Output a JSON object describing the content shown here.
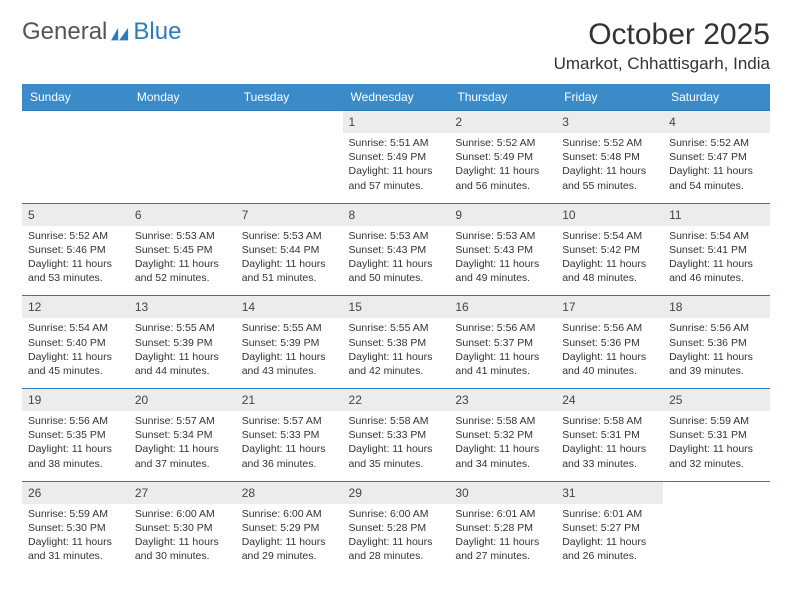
{
  "brand": {
    "part1": "General",
    "part2": "Blue"
  },
  "title": "October 2025",
  "location": "Umarkot, Chhattisgarh, India",
  "colors": {
    "header_bg": "#3b8bc9",
    "header_text": "#ffffff",
    "daynum_bg": "#ececec",
    "border": "#2b7bbd",
    "logo_gray": "#555555",
    "logo_blue": "#2b7bbd",
    "text": "#333333",
    "page_bg": "#ffffff"
  },
  "weekdays": [
    "Sunday",
    "Monday",
    "Tuesday",
    "Wednesday",
    "Thursday",
    "Friday",
    "Saturday"
  ],
  "weeks": [
    {
      "nums": [
        "",
        "",
        "",
        "1",
        "2",
        "3",
        "4"
      ],
      "cells": [
        null,
        null,
        null,
        {
          "sunrise": "Sunrise: 5:51 AM",
          "sunset": "Sunset: 5:49 PM",
          "day1": "Daylight: 11 hours",
          "day2": "and 57 minutes."
        },
        {
          "sunrise": "Sunrise: 5:52 AM",
          "sunset": "Sunset: 5:49 PM",
          "day1": "Daylight: 11 hours",
          "day2": "and 56 minutes."
        },
        {
          "sunrise": "Sunrise: 5:52 AM",
          "sunset": "Sunset: 5:48 PM",
          "day1": "Daylight: 11 hours",
          "day2": "and 55 minutes."
        },
        {
          "sunrise": "Sunrise: 5:52 AM",
          "sunset": "Sunset: 5:47 PM",
          "day1": "Daylight: 11 hours",
          "day2": "and 54 minutes."
        }
      ]
    },
    {
      "nums": [
        "5",
        "6",
        "7",
        "8",
        "9",
        "10",
        "11"
      ],
      "cells": [
        {
          "sunrise": "Sunrise: 5:52 AM",
          "sunset": "Sunset: 5:46 PM",
          "day1": "Daylight: 11 hours",
          "day2": "and 53 minutes."
        },
        {
          "sunrise": "Sunrise: 5:53 AM",
          "sunset": "Sunset: 5:45 PM",
          "day1": "Daylight: 11 hours",
          "day2": "and 52 minutes."
        },
        {
          "sunrise": "Sunrise: 5:53 AM",
          "sunset": "Sunset: 5:44 PM",
          "day1": "Daylight: 11 hours",
          "day2": "and 51 minutes."
        },
        {
          "sunrise": "Sunrise: 5:53 AM",
          "sunset": "Sunset: 5:43 PM",
          "day1": "Daylight: 11 hours",
          "day2": "and 50 minutes."
        },
        {
          "sunrise": "Sunrise: 5:53 AM",
          "sunset": "Sunset: 5:43 PM",
          "day1": "Daylight: 11 hours",
          "day2": "and 49 minutes."
        },
        {
          "sunrise": "Sunrise: 5:54 AM",
          "sunset": "Sunset: 5:42 PM",
          "day1": "Daylight: 11 hours",
          "day2": "and 48 minutes."
        },
        {
          "sunrise": "Sunrise: 5:54 AM",
          "sunset": "Sunset: 5:41 PM",
          "day1": "Daylight: 11 hours",
          "day2": "and 46 minutes."
        }
      ]
    },
    {
      "nums": [
        "12",
        "13",
        "14",
        "15",
        "16",
        "17",
        "18"
      ],
      "cells": [
        {
          "sunrise": "Sunrise: 5:54 AM",
          "sunset": "Sunset: 5:40 PM",
          "day1": "Daylight: 11 hours",
          "day2": "and 45 minutes."
        },
        {
          "sunrise": "Sunrise: 5:55 AM",
          "sunset": "Sunset: 5:39 PM",
          "day1": "Daylight: 11 hours",
          "day2": "and 44 minutes."
        },
        {
          "sunrise": "Sunrise: 5:55 AM",
          "sunset": "Sunset: 5:39 PM",
          "day1": "Daylight: 11 hours",
          "day2": "and 43 minutes."
        },
        {
          "sunrise": "Sunrise: 5:55 AM",
          "sunset": "Sunset: 5:38 PM",
          "day1": "Daylight: 11 hours",
          "day2": "and 42 minutes."
        },
        {
          "sunrise": "Sunrise: 5:56 AM",
          "sunset": "Sunset: 5:37 PM",
          "day1": "Daylight: 11 hours",
          "day2": "and 41 minutes."
        },
        {
          "sunrise": "Sunrise: 5:56 AM",
          "sunset": "Sunset: 5:36 PM",
          "day1": "Daylight: 11 hours",
          "day2": "and 40 minutes."
        },
        {
          "sunrise": "Sunrise: 5:56 AM",
          "sunset": "Sunset: 5:36 PM",
          "day1": "Daylight: 11 hours",
          "day2": "and 39 minutes."
        }
      ]
    },
    {
      "nums": [
        "19",
        "20",
        "21",
        "22",
        "23",
        "24",
        "25"
      ],
      "cells": [
        {
          "sunrise": "Sunrise: 5:56 AM",
          "sunset": "Sunset: 5:35 PM",
          "day1": "Daylight: 11 hours",
          "day2": "and 38 minutes."
        },
        {
          "sunrise": "Sunrise: 5:57 AM",
          "sunset": "Sunset: 5:34 PM",
          "day1": "Daylight: 11 hours",
          "day2": "and 37 minutes."
        },
        {
          "sunrise": "Sunrise: 5:57 AM",
          "sunset": "Sunset: 5:33 PM",
          "day1": "Daylight: 11 hours",
          "day2": "and 36 minutes."
        },
        {
          "sunrise": "Sunrise: 5:58 AM",
          "sunset": "Sunset: 5:33 PM",
          "day1": "Daylight: 11 hours",
          "day2": "and 35 minutes."
        },
        {
          "sunrise": "Sunrise: 5:58 AM",
          "sunset": "Sunset: 5:32 PM",
          "day1": "Daylight: 11 hours",
          "day2": "and 34 minutes."
        },
        {
          "sunrise": "Sunrise: 5:58 AM",
          "sunset": "Sunset: 5:31 PM",
          "day1": "Daylight: 11 hours",
          "day2": "and 33 minutes."
        },
        {
          "sunrise": "Sunrise: 5:59 AM",
          "sunset": "Sunset: 5:31 PM",
          "day1": "Daylight: 11 hours",
          "day2": "and 32 minutes."
        }
      ]
    },
    {
      "nums": [
        "26",
        "27",
        "28",
        "29",
        "30",
        "31",
        ""
      ],
      "cells": [
        {
          "sunrise": "Sunrise: 5:59 AM",
          "sunset": "Sunset: 5:30 PM",
          "day1": "Daylight: 11 hours",
          "day2": "and 31 minutes."
        },
        {
          "sunrise": "Sunrise: 6:00 AM",
          "sunset": "Sunset: 5:30 PM",
          "day1": "Daylight: 11 hours",
          "day2": "and 30 minutes."
        },
        {
          "sunrise": "Sunrise: 6:00 AM",
          "sunset": "Sunset: 5:29 PM",
          "day1": "Daylight: 11 hours",
          "day2": "and 29 minutes."
        },
        {
          "sunrise": "Sunrise: 6:00 AM",
          "sunset": "Sunset: 5:28 PM",
          "day1": "Daylight: 11 hours",
          "day2": "and 28 minutes."
        },
        {
          "sunrise": "Sunrise: 6:01 AM",
          "sunset": "Sunset: 5:28 PM",
          "day1": "Daylight: 11 hours",
          "day2": "and 27 minutes."
        },
        {
          "sunrise": "Sunrise: 6:01 AM",
          "sunset": "Sunset: 5:27 PM",
          "day1": "Daylight: 11 hours",
          "day2": "and 26 minutes."
        },
        null
      ]
    }
  ]
}
